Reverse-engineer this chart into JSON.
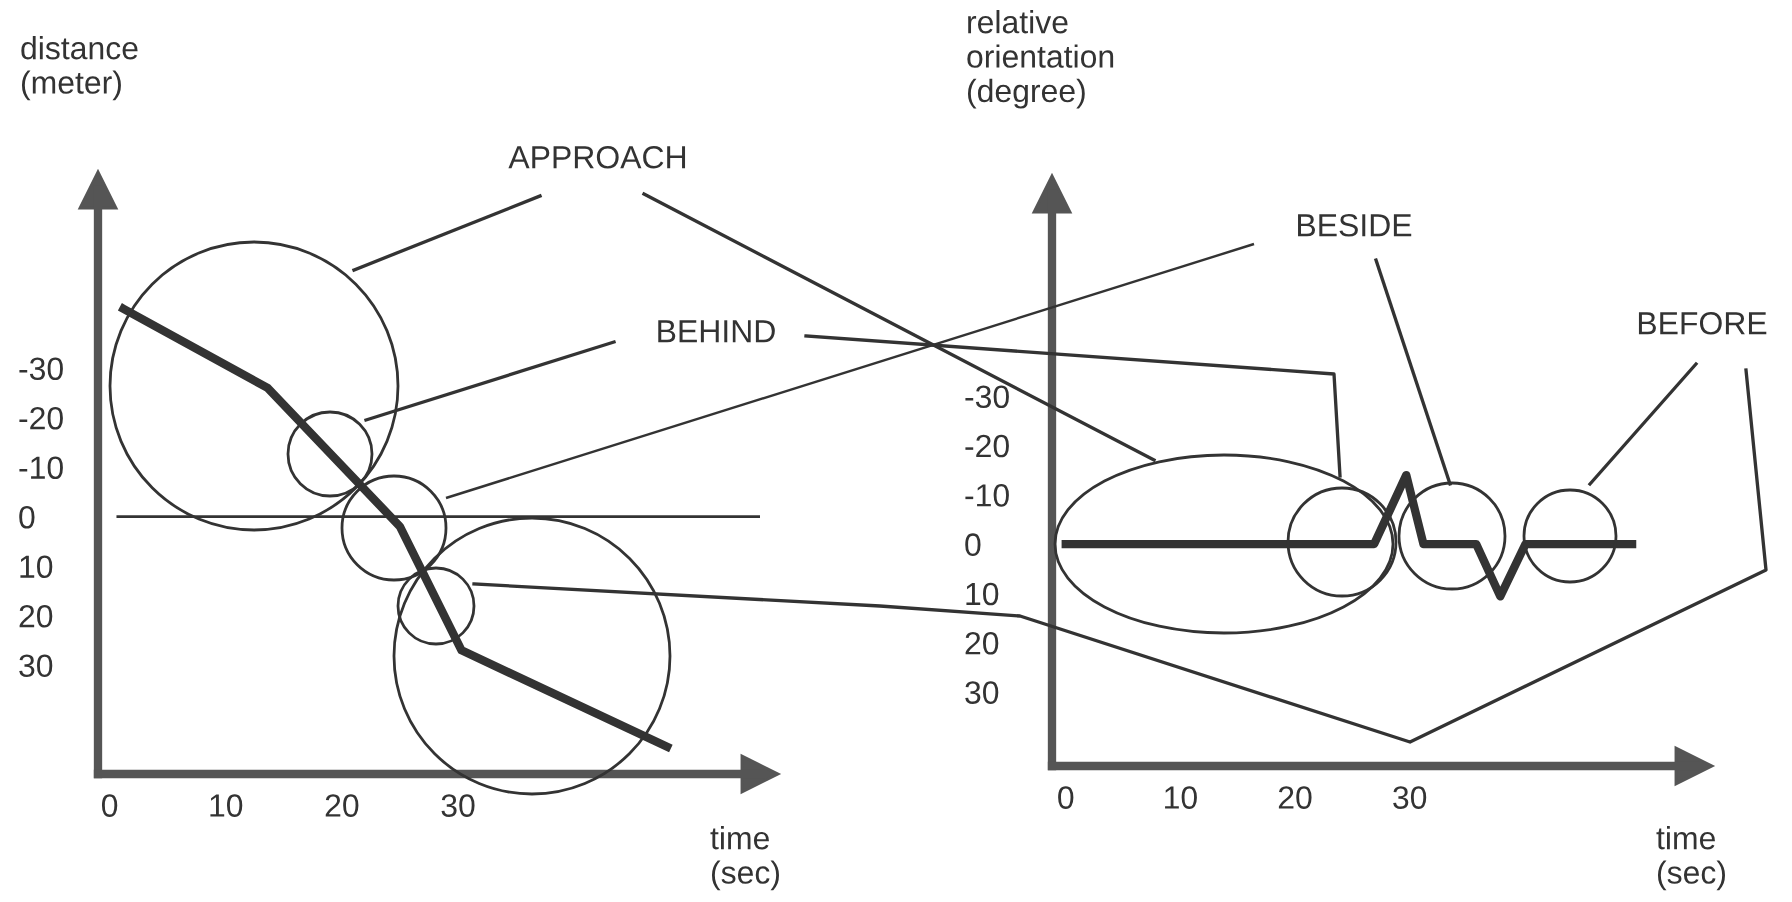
{
  "chart_data": [
    {
      "type": "line",
      "xlabel": "time\n(sec)",
      "ylabel": "distance\n(meter)",
      "x": [
        1.2,
        13.6,
        25,
        30.3,
        48
      ],
      "series": [
        {
          "color": "#333333",
          "values": [
            -42,
            -26,
            2,
            27,
            46.5
          ]
        }
      ],
      "xlim": [
        -1,
        56
      ],
      "ylim": [
        52,
        -66
      ],
      "xticks": [
        0,
        10,
        20,
        30
      ],
      "yticks": [
        -30,
        -20,
        -10,
        0,
        10,
        20,
        30
      ],
      "ref_lines": [
        {
          "axis": "y",
          "value": 0,
          "color": "#333333"
        }
      ],
      "annotations": [
        "APPROACH",
        "BEHIND"
      ],
      "grid": false
    },
    {
      "type": "line",
      "xlabel": "time\n(sec)",
      "ylabel": "relative\norientation\n(degree)",
      "x": [
        0,
        26.9,
        29.7,
        31.2,
        35.8,
        37.9,
        40.1,
        49.4
      ],
      "series": [
        {
          "color": "#333333",
          "values": [
            0,
            0,
            -14,
            0,
            0,
            10.6,
            0,
            0
          ]
        }
      ],
      "xlim": [
        -1.2,
        54.8
      ],
      "ylim": [
        45,
        -71
      ],
      "xticks": [
        0,
        10,
        20,
        30
      ],
      "yticks": [
        -30,
        -20,
        -10,
        0,
        10,
        20,
        30
      ],
      "annotations": [
        "BESIDE",
        "BEFORE"
      ],
      "grid": false
    }
  ]
}
